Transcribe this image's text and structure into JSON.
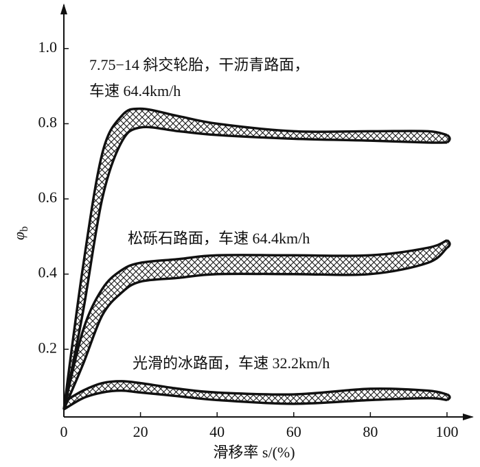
{
  "chart_data": {
    "type": "band",
    "xlabel": "滑移率 s/(%)",
    "ylabel": "φ",
    "ylabel_sub": "b",
    "xlim": [
      0,
      107
    ],
    "ylim": [
      0.02,
      1.12
    ],
    "xticks": [
      0,
      20,
      40,
      60,
      80,
      100
    ],
    "yticks": [
      0.2,
      0.4,
      0.6,
      0.8,
      {
        "value": 1,
        "label": "1.0"
      }
    ],
    "x": [
      0,
      5,
      10,
      15,
      20,
      30,
      40,
      60,
      80,
      95,
      100
    ],
    "series": [
      {
        "label_lines": [
          "7.75−14 斜交轮胎，干沥青路面，",
          "车速 64.4km/h"
        ],
        "color": "#111111",
        "upper": [
          0.04,
          0.42,
          0.72,
          0.82,
          0.84,
          0.82,
          0.8,
          0.78,
          0.78,
          0.78,
          0.77
        ],
        "lower": [
          0.04,
          0.3,
          0.6,
          0.75,
          0.79,
          0.78,
          0.77,
          0.76,
          0.755,
          0.75,
          0.75
        ]
      },
      {
        "label_lines": [
          "松砾石路面，车速 64.4km/h"
        ],
        "color": "#111111",
        "upper": [
          0.04,
          0.25,
          0.36,
          0.41,
          0.43,
          0.44,
          0.45,
          0.45,
          0.45,
          0.47,
          0.49
        ],
        "lower": [
          0.04,
          0.16,
          0.29,
          0.35,
          0.38,
          0.39,
          0.4,
          0.4,
          0.4,
          0.43,
          0.47
        ]
      },
      {
        "label_lines": [
          "光滑的冰路面，车速 32.2km/h"
        ],
        "color": "#111111",
        "upper": [
          0.06,
          0.09,
          0.11,
          0.115,
          0.11,
          0.095,
          0.085,
          0.08,
          0.095,
          0.09,
          0.08
        ],
        "lower": [
          0.04,
          0.07,
          0.085,
          0.09,
          0.085,
          0.075,
          0.065,
          0.055,
          0.065,
          0.07,
          0.065
        ]
      }
    ]
  }
}
